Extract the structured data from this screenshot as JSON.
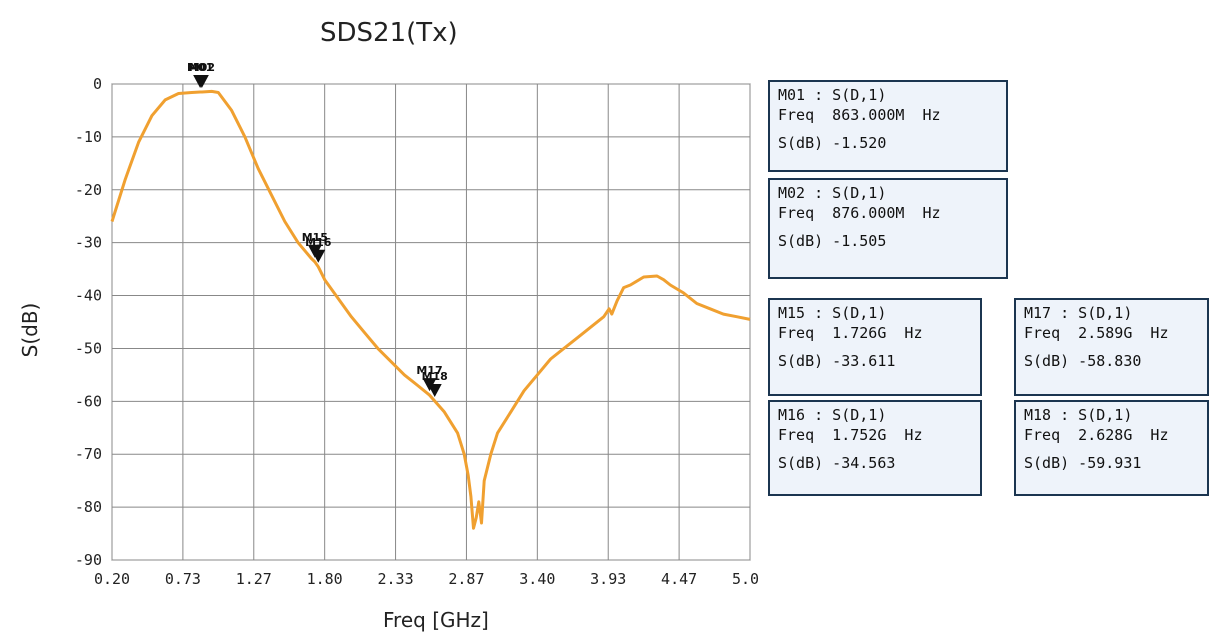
{
  "chart_data": {
    "type": "line",
    "title": "SDS21(Tx)",
    "xlabel": "Freq [GHz]",
    "ylabel": "S(dB)",
    "xlim": [
      0.2,
      5.0
    ],
    "ylim": [
      -90,
      0
    ],
    "xticks": [
      "0.20",
      "0.73",
      "1.27",
      "1.80",
      "2.33",
      "2.87",
      "3.40",
      "3.93",
      "4.47",
      "5.00"
    ],
    "yticks": [
      "0",
      "-10",
      "-20",
      "-30",
      "-40",
      "-50",
      "-60",
      "-70",
      "-80",
      "-90"
    ],
    "grid": true,
    "line_color": "#f0a030",
    "series": [
      {
        "x": [
          0.2,
          0.3,
          0.4,
          0.5,
          0.6,
          0.7,
          0.8,
          0.863,
          0.876,
          0.95,
          1.0,
          1.1,
          1.2,
          1.3,
          1.4,
          1.5,
          1.6,
          1.7,
          1.726,
          1.752,
          1.8,
          1.9,
          2.0,
          2.1,
          2.2,
          2.3,
          2.4,
          2.5,
          2.589,
          2.628,
          2.7,
          2.8,
          2.85,
          2.88,
          2.9,
          2.92,
          2.94,
          2.96,
          2.98,
          3.0,
          3.05,
          3.1,
          3.2,
          3.3,
          3.4,
          3.5,
          3.6,
          3.7,
          3.8,
          3.9,
          3.94,
          3.96,
          4.0,
          4.05,
          4.1,
          4.2,
          4.3,
          4.35,
          4.4,
          4.5,
          4.6,
          4.7,
          4.8,
          4.9,
          5.0
        ],
        "y": [
          -26,
          -18,
          -11,
          -6,
          -3,
          -1.8,
          -1.6,
          -1.52,
          -1.505,
          -1.4,
          -1.6,
          -5,
          -10,
          -16,
          -21,
          -26,
          -30,
          -33,
          -33.611,
          -34.563,
          -37,
          -40.5,
          -44,
          -47,
          -50,
          -52.5,
          -55,
          -57,
          -58.83,
          -59.931,
          -62,
          -66,
          -70,
          -74,
          -78,
          -84,
          -82,
          -79,
          -83,
          -75,
          -70,
          -66,
          -62,
          -58,
          -55,
          -52,
          -50,
          -48,
          -46,
          -44,
          -42.5,
          -43.5,
          -41,
          -38.5,
          -38,
          -36.5,
          -36.3,
          -37,
          -38,
          -39.5,
          -41.5,
          -42.5,
          -43.5,
          -44,
          -44.5
        ]
      }
    ],
    "markers": [
      {
        "id": "M01",
        "x": 0.863,
        "y": -1.52
      },
      {
        "id": "M02",
        "x": 0.876,
        "y": -1.505
      },
      {
        "id": "M15",
        "x": 1.726,
        "y": -33.611
      },
      {
        "id": "M16",
        "x": 1.752,
        "y": -34.563
      },
      {
        "id": "M17",
        "x": 2.589,
        "y": -58.83
      },
      {
        "id": "M18",
        "x": 2.628,
        "y": -59.931
      }
    ]
  },
  "boxes": [
    {
      "head": "M01 : S(D,1)",
      "freq": "Freq  863.000M  Hz",
      "sdb": "S(dB) -1.520"
    },
    {
      "head": "M02 : S(D,1)",
      "freq": "Freq  876.000M  Hz",
      "sdb": "S(dB) -1.505"
    },
    {
      "head": "M15 : S(D,1)",
      "freq": "Freq  1.726G  Hz",
      "sdb": "S(dB) -33.611"
    },
    {
      "head": "M16 : S(D,1)",
      "freq": "Freq  1.752G  Hz",
      "sdb": "S(dB) -34.563"
    },
    {
      "head": "M17 : S(D,1)",
      "freq": "Freq  2.589G  Hz",
      "sdb": "S(dB) -58.830"
    },
    {
      "head": "M18 : S(D,1)",
      "freq": "Freq  2.628G  Hz",
      "sdb": "S(dB) -59.931"
    }
  ]
}
